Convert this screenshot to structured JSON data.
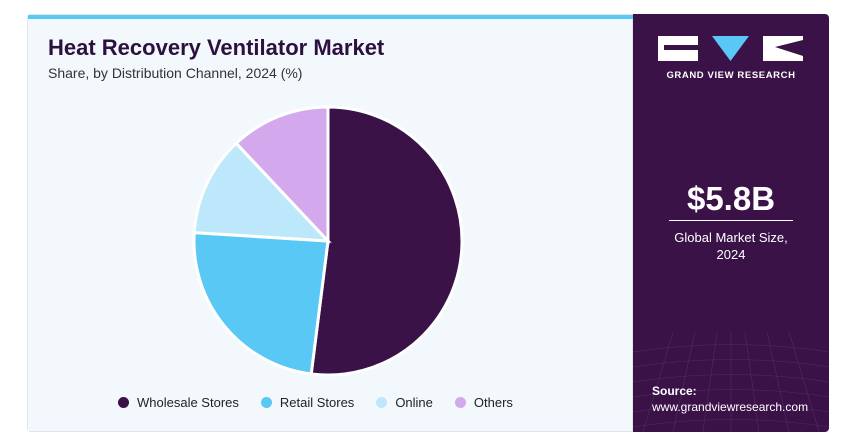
{
  "header": {
    "title": "Heat Recovery Ventilator Market",
    "subtitle": "Share, by Distribution Channel, 2024 (%)"
  },
  "chart_data": {
    "type": "pie",
    "categories": [
      "Wholesale Stores",
      "Retail Stores",
      "Online",
      "Others"
    ],
    "values": [
      52,
      24,
      12,
      12
    ],
    "colors": [
      "#3a1248",
      "#5ac8f5",
      "#bde8fb",
      "#d4a8ec"
    ],
    "start": "12 o'clock, clockwise",
    "legend_position": "bottom"
  },
  "sidebar": {
    "brand": "GRAND VIEW RESEARCH",
    "metric_value": "$5.8B",
    "metric_label_line1": "Global Market Size,",
    "metric_label_line2": "2024",
    "source_label": "Source:",
    "source_url": "www.grandviewresearch.com",
    "background_color": "#3a1248"
  }
}
